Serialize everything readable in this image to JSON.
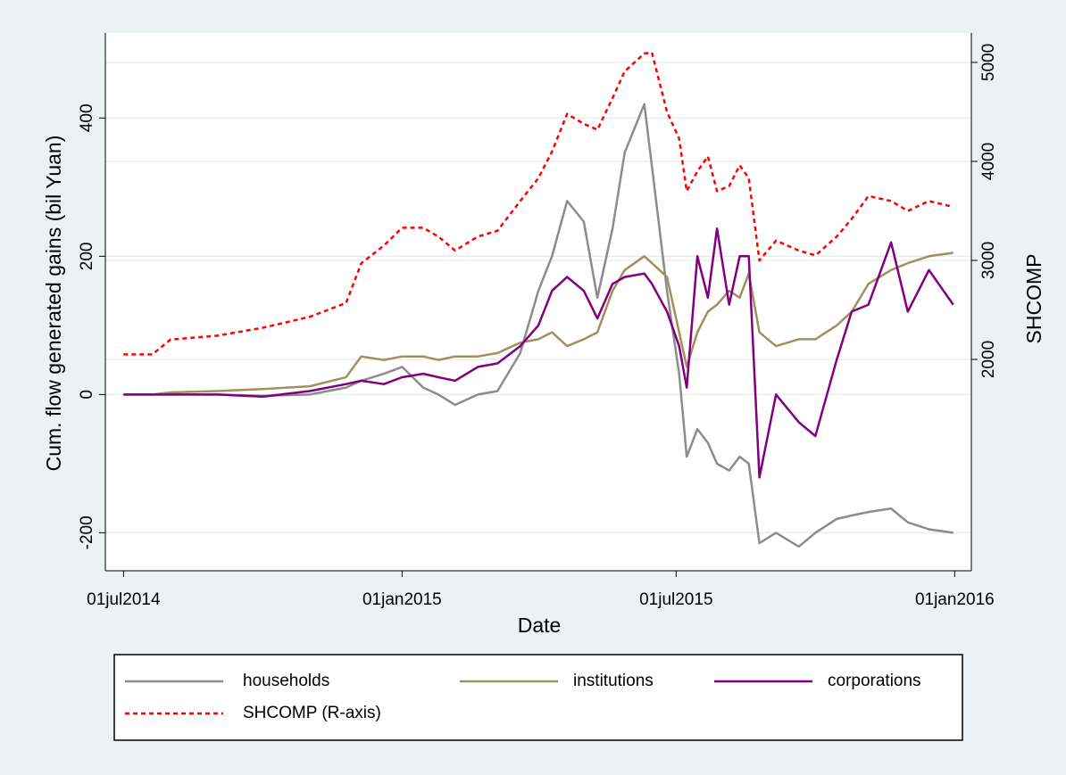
{
  "chart_data": {
    "type": "line",
    "xlabel": "Date",
    "ylabel": "Cum. flow generated gains (bil Yuan)",
    "y2label": "SHCOMP",
    "x": [
      "2014-07-01",
      "2014-07-20",
      "2014-08-01",
      "2014-09-01",
      "2014-10-01",
      "2014-11-01",
      "2014-11-25",
      "2014-12-05",
      "2014-12-20",
      "2015-01-01",
      "2015-01-15",
      "2015-01-25",
      "2015-02-05",
      "2015-02-20",
      "2015-03-05",
      "2015-03-20",
      "2015-04-01",
      "2015-04-10",
      "2015-04-20",
      "2015-05-01",
      "2015-05-10",
      "2015-05-20",
      "2015-05-28",
      "2015-06-10",
      "2015-06-15",
      "2015-06-25",
      "2015-07-03",
      "2015-07-08",
      "2015-07-15",
      "2015-07-22",
      "2015-07-28",
      "2015-08-05",
      "2015-08-12",
      "2015-08-18",
      "2015-08-25",
      "2015-09-05",
      "2015-09-20",
      "2015-10-01",
      "2015-10-15",
      "2015-10-25",
      "2015-11-05",
      "2015-11-20",
      "2015-12-01",
      "2015-12-15",
      "2015-12-31"
    ],
    "series": [
      {
        "name": "households",
        "color": "#8c8c8c",
        "values": [
          0,
          0,
          0,
          0,
          -2,
          0,
          10,
          20,
          30,
          40,
          10,
          0,
          -15,
          0,
          5,
          60,
          150,
          200,
          280,
          250,
          140,
          240,
          350,
          420,
          330,
          150,
          30,
          -90,
          -50,
          -70,
          -100,
          -110,
          -90,
          -100,
          -215,
          -200,
          -220,
          -200,
          -180,
          -175,
          -170,
          -165,
          -185,
          -195,
          -200
        ]
      },
      {
        "name": "institutions",
        "color": "#a38f5e",
        "values": [
          0,
          0,
          3,
          5,
          8,
          12,
          25,
          55,
          50,
          55,
          55,
          50,
          55,
          55,
          60,
          75,
          80,
          90,
          70,
          80,
          90,
          150,
          180,
          200,
          190,
          170,
          90,
          40,
          90,
          120,
          130,
          150,
          140,
          175,
          90,
          70,
          80,
          80,
          100,
          120,
          160,
          180,
          190,
          200,
          205
        ]
      },
      {
        "name": "corporations",
        "color": "#800080",
        "values": [
          0,
          0,
          0,
          0,
          -3,
          5,
          15,
          20,
          15,
          25,
          30,
          25,
          20,
          40,
          45,
          70,
          100,
          150,
          170,
          150,
          110,
          160,
          170,
          175,
          160,
          120,
          70,
          10,
          200,
          140,
          240,
          130,
          200,
          200,
          -120,
          0,
          -40,
          -60,
          50,
          120,
          130,
          220,
          120,
          180,
          130
        ]
      },
      {
        "name": "SHCOMP (R-axis)",
        "color": "#ff0000",
        "dashed": true,
        "axis": "y2",
        "values": [
          2050,
          2050,
          2200,
          2240,
          2320,
          2430,
          2570,
          2970,
          3150,
          3330,
          3330,
          3240,
          3100,
          3240,
          3300,
          3600,
          3830,
          4100,
          4480,
          4380,
          4320,
          4640,
          4910,
          5090,
          5100,
          4500,
          4230,
          3700,
          3900,
          4050,
          3700,
          3750,
          3960,
          3830,
          3000,
          3200,
          3100,
          3050,
          3240,
          3420,
          3650,
          3600,
          3500,
          3600,
          3540
        ]
      }
    ],
    "xlim": [
      "2014-06-19",
      "2016-01-12"
    ],
    "xticks": [
      {
        "value": "2014-07-01",
        "label": "01jul2014"
      },
      {
        "value": "2015-01-01",
        "label": "01jan2015"
      },
      {
        "value": "2015-07-01",
        "label": "01jul2015"
      },
      {
        "value": "2016-01-01",
        "label": "01jan2016"
      }
    ],
    "ylim": [
      -255,
      523
    ],
    "yticks": [
      -200,
      0,
      200,
      400
    ],
    "y2lim": [
      -135,
      5297
    ],
    "y2ticks": [
      2000,
      3000,
      4000,
      5000
    ],
    "grid": true,
    "legend": "bottom"
  }
}
